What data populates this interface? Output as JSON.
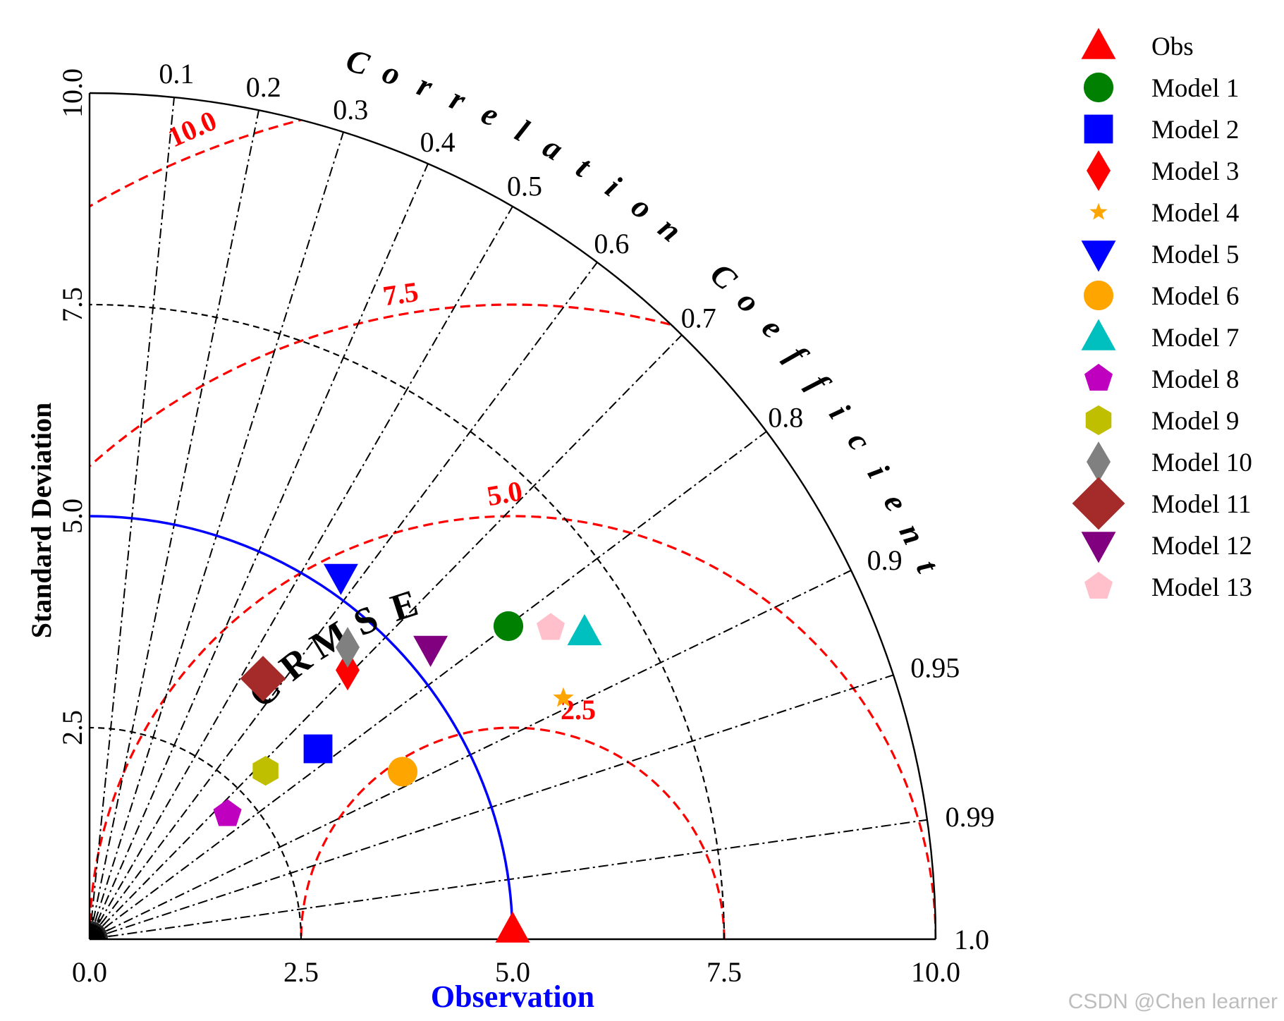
{
  "chart_data": {
    "type": "taylor",
    "r_axis": {
      "max": 10.0,
      "ticks": [
        0.0,
        2.5,
        5.0,
        7.5,
        10.0
      ],
      "tick_labels": [
        "0.0",
        "2.5",
        "5.0",
        "7.5",
        "10.0"
      ],
      "y_label": "Standard Deviation",
      "x_label": "Observation"
    },
    "correlation_axis": {
      "label": "Correlation Coefficient",
      "ticks": [
        0.1,
        0.2,
        0.3,
        0.4,
        0.5,
        0.6,
        0.7,
        0.8,
        0.9,
        0.95,
        0.99,
        1.0
      ],
      "tick_labels": [
        "0.1",
        "0.2",
        "0.3",
        "0.4",
        "0.5",
        "0.6",
        "0.7",
        "0.8",
        "0.9",
        "0.95",
        "0.99",
        "1.0"
      ]
    },
    "rmse": {
      "label": "C R M S E",
      "levels": [
        2.5,
        5.0,
        7.5,
        10.0
      ],
      "level_labels": [
        "2.5",
        "5.0",
        "7.5",
        "10.0"
      ],
      "color": "#ff0000"
    },
    "std_circles": [
      2.5,
      7.5
    ],
    "reference": {
      "name": "Obs",
      "std": 5.0,
      "color": "#0000ff"
    },
    "points": [
      {
        "name": "Obs",
        "x": 5.0,
        "y": 0.05,
        "marker": "triangle-up",
        "color": "#ff0000"
      },
      {
        "name": "Model 1",
        "x": 4.95,
        "y": 3.7,
        "marker": "circle",
        "color": "#008000"
      },
      {
        "name": "Model 2",
        "x": 2.7,
        "y": 2.25,
        "marker": "square",
        "color": "#0000ff"
      },
      {
        "name": "Model 3",
        "x": 3.05,
        "y": 3.18,
        "marker": "thin-diamond",
        "color": "#ff0000"
      },
      {
        "name": "Model 4",
        "x": 5.6,
        "y": 2.85,
        "marker": "star",
        "color": "#ffa500"
      },
      {
        "name": "Model 5",
        "x": 2.97,
        "y": 4.28,
        "marker": "triangle-down",
        "color": "#0000ff"
      },
      {
        "name": "Model 6",
        "x": 3.7,
        "y": 1.98,
        "marker": "circle",
        "color": "#ffa500"
      },
      {
        "name": "Model 7",
        "x": 5.85,
        "y": 3.63,
        "marker": "triangle-up",
        "color": "#00bfbf"
      },
      {
        "name": "Model 8",
        "x": 1.63,
        "y": 1.48,
        "marker": "pentagon",
        "color": "#bf00bf"
      },
      {
        "name": "Model 9",
        "x": 2.08,
        "y": 1.99,
        "marker": "hexagon",
        "color": "#bfbf00"
      },
      {
        "name": "Model 10",
        "x": 3.05,
        "y": 3.45,
        "marker": "thin-diamond",
        "color": "#808080"
      },
      {
        "name": "Model 11",
        "x": 2.05,
        "y": 3.08,
        "marker": "diamond",
        "color": "#a52a2a"
      },
      {
        "name": "Model 12",
        "x": 4.03,
        "y": 3.43,
        "marker": "triangle-down",
        "color": "#800080"
      },
      {
        "name": "Model 13",
        "x": 5.45,
        "y": 3.68,
        "marker": "pentagon",
        "color": "#ffc0cb"
      }
    ],
    "legend": "right",
    "grid": true
  },
  "watermark": "CSDN @Chen learner"
}
